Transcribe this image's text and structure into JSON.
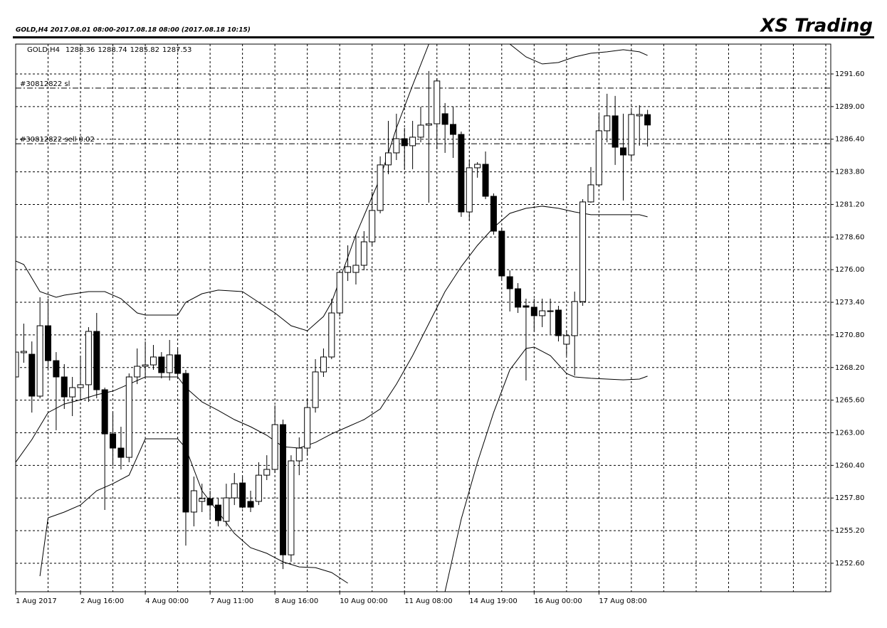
{
  "chart_data": {
    "type": "candlestick",
    "header_text": "GOLD,H4  2017.08.01 08:00-2017.08.18 08:00 (2017.08.18 10:15)",
    "brand": "XS Trading",
    "symbol": "GOLD,H4",
    "up_color": "#ffffff",
    "down_color": "#000000",
    "grid": true,
    "ylim": [
      1250.33,
      1293.98
    ],
    "yticks": [
      {
        "value": 1252.6,
        "label": "1252.60"
      },
      {
        "value": 1255.2,
        "label": "1255.20"
      },
      {
        "value": 1257.8,
        "label": "1257.80"
      },
      {
        "value": 1260.4,
        "label": "1260.40"
      },
      {
        "value": 1263.0,
        "label": "1263.00"
      },
      {
        "value": 1265.6,
        "label": "1265.60"
      },
      {
        "value": 1268.2,
        "label": "1268.20"
      },
      {
        "value": 1270.8,
        "label": "1270.80"
      },
      {
        "value": 1273.4,
        "label": "1273.40"
      },
      {
        "value": 1276.0,
        "label": "1276.00"
      },
      {
        "value": 1278.6,
        "label": "1278.60"
      },
      {
        "value": 1281.2,
        "label": "1281.20"
      },
      {
        "value": 1283.8,
        "label": "1283.80"
      },
      {
        "value": 1286.4,
        "label": "1286.40"
      },
      {
        "value": 1289.0,
        "label": "1289.00"
      },
      {
        "value": 1291.6,
        "label": "1291.60"
      }
    ],
    "categories": [
      "1 Aug 2017",
      null,
      null,
      null,
      null,
      null,
      null,
      null,
      "2 Aug 16:00",
      null,
      null,
      null,
      null,
      null,
      null,
      null,
      "4 Aug 00:00",
      null,
      null,
      null,
      null,
      null,
      null,
      null,
      "7 Aug 11:00",
      null,
      null,
      null,
      null,
      null,
      null,
      null,
      "8 Aug 16:00",
      null,
      null,
      null,
      null,
      null,
      null,
      null,
      "10 Aug 00:00",
      null,
      null,
      null,
      null,
      null,
      null,
      null,
      "11 Aug 08:00",
      null,
      null,
      null,
      null,
      null,
      null,
      null,
      "14 Aug 19:00",
      null,
      null,
      null,
      null,
      null,
      null,
      null,
      "16 Aug 00:00",
      null,
      null,
      null,
      null,
      null,
      null,
      null,
      "17 Aug 08:00",
      null,
      null,
      null,
      null,
      null,
      null
    ],
    "ohlc": [
      [
        1267.45,
        1269.72,
        1267.17,
        1269.43
      ],
      [
        1269.38,
        1271.7,
        1268.58,
        1269.49
      ],
      [
        1269.26,
        1270.28,
        1264.61,
        1265.92
      ],
      [
        1265.92,
        1273.8,
        1265.75,
        1271.53
      ],
      [
        1271.53,
        1273.69,
        1268.02,
        1268.75
      ],
      [
        1268.75,
        1269.43,
        1263.2,
        1267.45
      ],
      [
        1267.45,
        1268.47,
        1264.9,
        1265.86
      ],
      [
        1265.86,
        1267.45,
        1264.33,
        1266.6
      ],
      [
        1266.6,
        1269.15,
        1265.75,
        1266.83
      ],
      [
        1266.83,
        1271.42,
        1265.46,
        1271.08
      ],
      [
        1271.08,
        1272.55,
        1265.75,
        1266.43
      ],
      [
        1266.43,
        1266.6,
        1256.85,
        1262.91
      ],
      [
        1262.91,
        1264.61,
        1260.36,
        1261.78
      ],
      [
        1261.78,
        1263.48,
        1260.08,
        1261.04
      ],
      [
        1261.04,
        1267.73,
        1260.65,
        1267.45
      ],
      [
        1267.45,
        1269.72,
        1266.88,
        1268.3
      ],
      [
        1268.3,
        1270.28,
        1267.45,
        1268.41
      ],
      [
        1268.41,
        1270.0,
        1268.02,
        1269.04
      ],
      [
        1269.04,
        1269.43,
        1267.34,
        1267.79
      ],
      [
        1267.79,
        1270.4,
        1267.17,
        1269.21
      ],
      [
        1269.21,
        1269.72,
        1267.45,
        1267.73
      ],
      [
        1267.73,
        1268.02,
        1254.01,
        1256.68
      ],
      [
        1256.68,
        1259.51,
        1255.54,
        1258.38
      ],
      [
        1257.53,
        1258.94,
        1256.68,
        1257.75
      ],
      [
        1257.75,
        1258.38,
        1256.11,
        1257.24
      ],
      [
        1257.24,
        1257.81,
        1255.54,
        1256.0
      ],
      [
        1255.94,
        1258.94,
        1255.54,
        1257.81
      ],
      [
        1257.81,
        1259.79,
        1257.24,
        1258.94
      ],
      [
        1259.0,
        1259.51,
        1256.96,
        1257.07
      ],
      [
        1257.53,
        1258.38,
        1256.68,
        1257.07
      ],
      [
        1257.53,
        1260.65,
        1257.24,
        1259.62
      ],
      [
        1259.62,
        1261.21,
        1259.23,
        1260.08
      ],
      [
        1260.08,
        1265.18,
        1259.79,
        1263.65
      ],
      [
        1263.65,
        1264.05,
        1252.14,
        1253.27
      ],
      [
        1253.27,
        1261.21,
        1252.71,
        1260.76
      ],
      [
        1260.76,
        1262.63,
        1259.62,
        1261.78
      ],
      [
        1261.78,
        1265.75,
        1261.21,
        1265.01
      ],
      [
        1265.01,
        1268.87,
        1264.61,
        1267.85
      ],
      [
        1267.85,
        1269.72,
        1267.45,
        1269.04
      ],
      [
        1269.04,
        1273.69,
        1268.87,
        1272.55
      ],
      [
        1272.55,
        1275.95,
        1272.27,
        1275.78
      ],
      [
        1275.78,
        1277.94,
        1275.1,
        1276.24
      ],
      [
        1275.78,
        1278.79,
        1274.82,
        1276.35
      ],
      [
        1276.35,
        1279.07,
        1275.95,
        1278.22
      ],
      [
        1278.22,
        1282.19,
        1277.94,
        1280.72
      ],
      [
        1280.72,
        1285.03,
        1280.49,
        1284.35
      ],
      [
        1284.35,
        1287.86,
        1283.61,
        1285.31
      ],
      [
        1285.31,
        1288.43,
        1284.74,
        1286.44
      ],
      [
        1286.44,
        1287.29,
        1284.01,
        1285.88
      ],
      [
        1285.88,
        1287.86,
        1284.01,
        1286.56
      ],
      [
        1286.56,
        1288.99,
        1286.16,
        1287.52
      ],
      [
        1287.52,
        1291.83,
        1281.34,
        1287.63
      ],
      [
        1287.63,
        1291.26,
        1285.59,
        1291.04
      ],
      [
        1288.43,
        1289.28,
        1285.31,
        1287.58
      ],
      [
        1287.58,
        1288.99,
        1284.91,
        1286.78
      ],
      [
        1286.78,
        1287.01,
        1280.21,
        1280.6
      ],
      [
        1280.6,
        1284.74,
        1279.92,
        1284.12
      ],
      [
        1284.12,
        1284.57,
        1283.33,
        1284.4
      ],
      [
        1284.4,
        1285.42,
        1281.62,
        1281.85
      ],
      [
        1281.85,
        1282.08,
        1278.79,
        1279.07
      ],
      [
        1279.07,
        1279.36,
        1275.27,
        1275.5
      ],
      [
        1275.44,
        1275.95,
        1272.67,
        1274.48
      ],
      [
        1274.48,
        1274.93,
        1272.55,
        1273.01
      ],
      [
        1273.12,
        1273.69,
        1267.17,
        1273.01
      ],
      [
        1273.01,
        1273.69,
        1271.13,
        1272.33
      ],
      [
        1272.33,
        1273.69,
        1271.42,
        1272.72
      ],
      [
        1272.67,
        1273.69,
        1270.85,
        1272.72
      ],
      [
        1272.78,
        1273.12,
        1270.28,
        1270.74
      ],
      [
        1270.06,
        1271.13,
        1269.15,
        1270.74
      ],
      [
        1270.74,
        1274.25,
        1267.56,
        1273.46
      ],
      [
        1273.46,
        1281.62,
        1273.12,
        1281.4
      ],
      [
        1281.4,
        1284.18,
        1281.34,
        1282.76
      ],
      [
        1282.76,
        1288.43,
        1282.64,
        1287.07
      ],
      [
        1287.07,
        1290.02,
        1286.16,
        1288.26
      ],
      [
        1288.26,
        1289.85,
        1284.35,
        1285.76
      ],
      [
        1285.71,
        1288.43,
        1281.51,
        1285.14
      ],
      [
        1285.14,
        1288.71,
        1284.74,
        1288.37
      ],
      [
        1288.26,
        1289.11,
        1285.88,
        1288.37
      ],
      [
        1288.36,
        1288.74,
        1285.82,
        1287.53
      ]
    ],
    "bands": [
      {
        "color": "#000000",
        "x": [
          0,
          1,
          3,
          5,
          6,
          9,
          11,
          13,
          15,
          16,
          20,
          21,
          23,
          25,
          28,
          30,
          32,
          34,
          36,
          38,
          39,
          42,
          45,
          47,
          49,
          51,
          56,
          61,
          63,
          65,
          67,
          69,
          71,
          73,
          75,
          77,
          78
        ],
        "values": [
          1276.69,
          1276.41,
          1274.25,
          1273.8,
          1273.97,
          1274.25,
          1274.25,
          1273.69,
          1272.55,
          1272.38,
          1272.38,
          1273.4,
          1274.08,
          1274.37,
          1274.25,
          1273.4,
          1272.55,
          1271.53,
          1271.13,
          1272.27,
          1273.4,
          1278.79,
          1283.33,
          1287.29,
          1290.7,
          1293.98,
          null,
          1293.98,
          1292.96,
          1292.4,
          1292.51,
          1292.96,
          1293.25,
          1293.36,
          1293.53,
          1293.36,
          1293.08
        ]
      },
      {
        "color": "#000000",
        "x": [
          0,
          2,
          4,
          6,
          8,
          10,
          12,
          14,
          16,
          20,
          21,
          23,
          25,
          27,
          29,
          31,
          33,
          35,
          37,
          39,
          41,
          43,
          45,
          47,
          49,
          51,
          53,
          55,
          57,
          59,
          61,
          63,
          65,
          67,
          69,
          71,
          73,
          75,
          77,
          78
        ],
        "values": [
          1260.65,
          1262.46,
          1264.61,
          1265.29,
          1265.63,
          1266.03,
          1266.32,
          1266.88,
          1267.45,
          1267.45,
          1266.6,
          1265.46,
          1264.78,
          1264.05,
          1263.48,
          1262.8,
          1261.89,
          1261.78,
          1262.23,
          1262.91,
          1263.48,
          1264.05,
          1264.9,
          1266.88,
          1269.15,
          1271.7,
          1274.25,
          1276.24,
          1277.94,
          1279.36,
          1280.49,
          1280.89,
          1281.06,
          1280.89,
          1280.6,
          1280.38,
          1280.38,
          1280.38,
          1280.38,
          1280.21
        ]
      },
      {
        "color": "#000000",
        "x": [
          3,
          4,
          6,
          8,
          10,
          12,
          14,
          16,
          20,
          21,
          23,
          25,
          27,
          29,
          31,
          33,
          35,
          37,
          39,
          41,
          47,
          53,
          55,
          57,
          59,
          61,
          63,
          64,
          66,
          68,
          69,
          71,
          73,
          75,
          77,
          78
        ],
        "values": [
          1251.57,
          1256.22,
          1256.68,
          1257.24,
          1258.38,
          1258.94,
          1259.62,
          1262.52,
          1262.52,
          1261.78,
          1258.38,
          1256.68,
          1254.98,
          1253.84,
          1253.39,
          1252.71,
          1252.31,
          1252.25,
          1251.86,
          1251.01,
          null,
          1250.33,
          1256.11,
          1260.65,
          1264.61,
          1268.02,
          1269.72,
          1269.83,
          1269.15,
          1267.73,
          1267.45,
          1267.34,
          1267.28,
          1267.22,
          1267.28,
          1267.51
        ]
      }
    ],
    "order_lines": [
      {
        "label": "#30812822 sl",
        "value": 1290.47
      },
      {
        "label": "#30812822 sell 0.02",
        "value": 1286.04
      }
    ]
  }
}
